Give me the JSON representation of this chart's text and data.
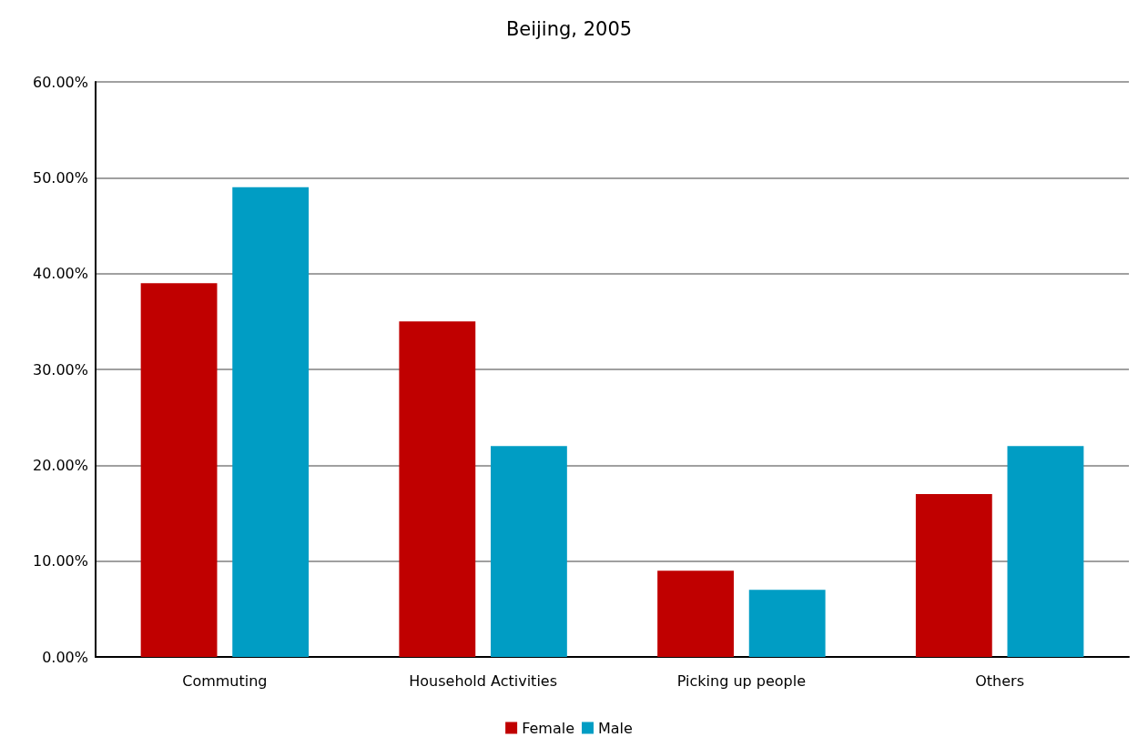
{
  "chart_data": {
    "type": "bar",
    "title": "Beijing, 2005",
    "categories": [
      "Commuting",
      "Household Activities",
      "Picking up people",
      "Others"
    ],
    "series": [
      {
        "name": "Female",
        "color": "#c00000",
        "values": [
          39,
          35,
          9,
          17
        ]
      },
      {
        "name": "Male",
        "color": "#009dc4",
        "values": [
          49,
          22,
          7,
          22
        ]
      }
    ],
    "ylim": [
      0,
      60
    ],
    "yticks": [
      {
        "value": 0,
        "label": "0.00%"
      },
      {
        "value": 10,
        "label": "10.00%"
      },
      {
        "value": 20,
        "label": "20.00%"
      },
      {
        "value": 30,
        "label": "30.00%"
      },
      {
        "value": 40,
        "label": "40.00%"
      },
      {
        "value": 50,
        "label": "50.00%"
      },
      {
        "value": 60,
        "label": "60.00%"
      }
    ],
    "grid": "y",
    "legend": "bottom"
  }
}
